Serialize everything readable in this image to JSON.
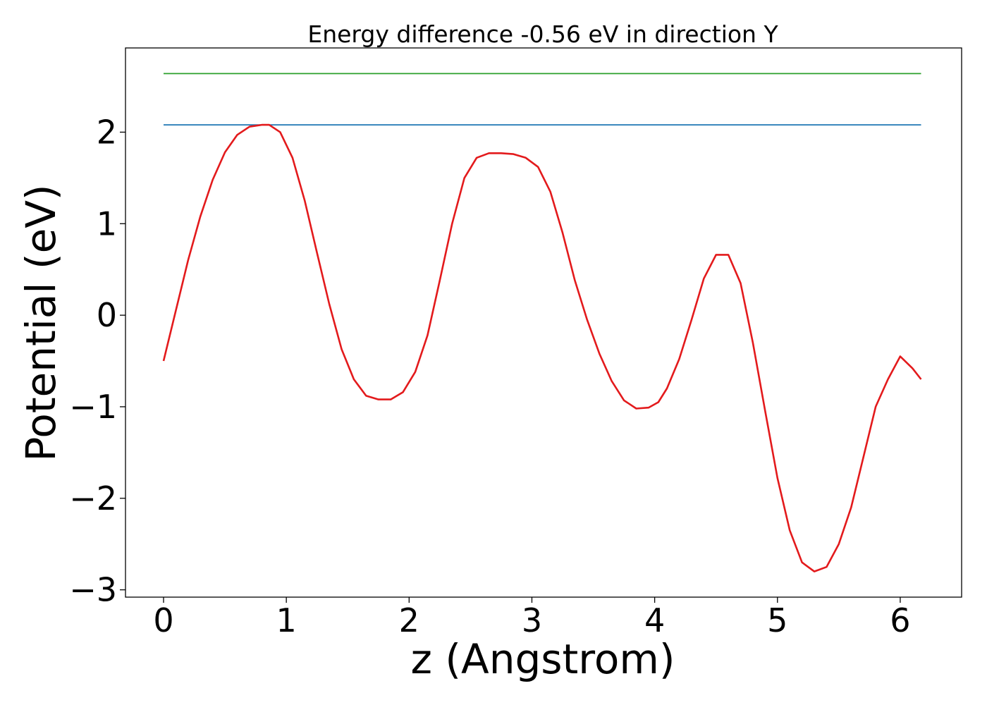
{
  "chart_data": {
    "type": "line",
    "title": "Energy difference -0.56 eV in direction Y",
    "xlabel": "z (Angstrom)",
    "ylabel": "Potential (eV)",
    "xlim": [
      -0.31,
      6.5
    ],
    "ylim": [
      -3.08,
      2.92
    ],
    "xticks": [
      0,
      1,
      2,
      3,
      4,
      5,
      6
    ],
    "xtick_labels": [
      "0",
      "1",
      "2",
      "3",
      "4",
      "5",
      "6"
    ],
    "yticks": [
      -3,
      -2,
      -1,
      0,
      1,
      2
    ],
    "ytick_labels": [
      "−3",
      "−2",
      "−1",
      "0",
      "1",
      "2"
    ],
    "grid": false,
    "legend": "none",
    "series": [
      {
        "color": "#2ca02c",
        "x": [
          0,
          6.17
        ],
        "y": [
          2.64,
          2.64
        ]
      },
      {
        "color": "#1f77b4",
        "x": [
          0,
          6.17
        ],
        "y": [
          2.08,
          2.08
        ]
      },
      {
        "color": "#e31a1c",
        "x": [
          0,
          0.1,
          0.2,
          0.3,
          0.4,
          0.5,
          0.6,
          0.7,
          0.8,
          0.86,
          0.95,
          1.05,
          1.15,
          1.25,
          1.35,
          1.45,
          1.55,
          1.65,
          1.75,
          1.85,
          1.95,
          2.05,
          2.15,
          2.25,
          2.35,
          2.45,
          2.55,
          2.65,
          2.75,
          2.85,
          2.95,
          3.05,
          3.15,
          3.25,
          3.35,
          3.45,
          3.55,
          3.65,
          3.75,
          3.85,
          3.95,
          4.03,
          4.1,
          4.2,
          4.3,
          4.4,
          4.5,
          4.6,
          4.7,
          4.8,
          4.9,
          5.0,
          5.1,
          5.2,
          5.3,
          5.4,
          5.5,
          5.6,
          5.7,
          5.8,
          5.9,
          6.0,
          6.1,
          6.17
        ],
        "y": [
          -0.5,
          0.05,
          0.6,
          1.08,
          1.48,
          1.78,
          1.97,
          2.06,
          2.08,
          2.08,
          2.0,
          1.72,
          1.25,
          0.68,
          0.12,
          -0.37,
          -0.7,
          -0.88,
          -0.92,
          -0.92,
          -0.84,
          -0.62,
          -0.22,
          0.38,
          1.0,
          1.5,
          1.72,
          1.77,
          1.77,
          1.76,
          1.72,
          1.62,
          1.35,
          0.9,
          0.38,
          -0.05,
          -0.42,
          -0.72,
          -0.93,
          -1.02,
          -1.01,
          -0.95,
          -0.8,
          -0.48,
          -0.05,
          0.4,
          0.66,
          0.66,
          0.35,
          -0.3,
          -1.05,
          -1.78,
          -2.35,
          -2.7,
          -2.8,
          -2.75,
          -2.5,
          -2.1,
          -1.55,
          -1.0,
          -0.7,
          -0.45,
          -0.58,
          -0.7
        ]
      }
    ]
  }
}
